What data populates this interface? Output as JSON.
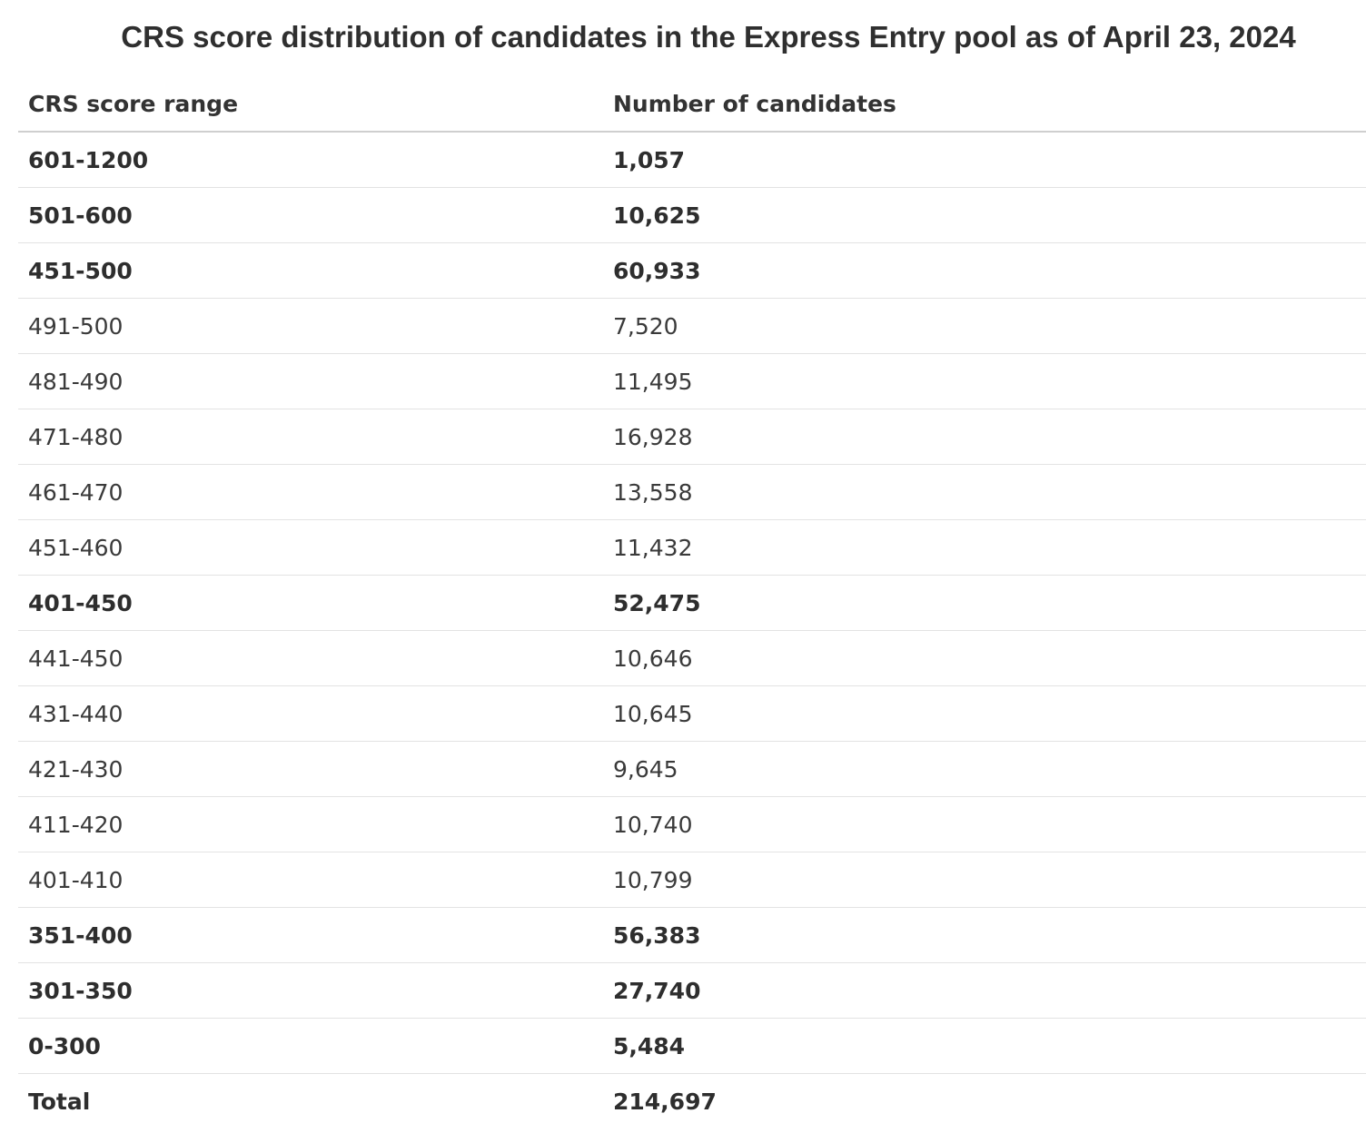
{
  "title": "CRS score distribution of candidates in the Express Entry pool as of April 23, 2024",
  "table": {
    "headers": [
      "CRS score range",
      "Number of candidates"
    ],
    "rows": [
      {
        "range": "601-1200",
        "count": "1,057",
        "bold": true
      },
      {
        "range": "501-600",
        "count": "10,625",
        "bold": true
      },
      {
        "range": "451-500",
        "count": "60,933",
        "bold": true
      },
      {
        "range": "491-500",
        "count": "7,520",
        "bold": false
      },
      {
        "range": "481-490",
        "count": "11,495",
        "bold": false
      },
      {
        "range": "471-480",
        "count": "16,928",
        "bold": false
      },
      {
        "range": "461-470",
        "count": "13,558",
        "bold": false
      },
      {
        "range": "451-460",
        "count": "11,432",
        "bold": false
      },
      {
        "range": "401-450",
        "count": "52,475",
        "bold": true
      },
      {
        "range": "441-450",
        "count": "10,646",
        "bold": false
      },
      {
        "range": "431-440",
        "count": "10,645",
        "bold": false
      },
      {
        "range": "421-430",
        "count": "9,645",
        "bold": false
      },
      {
        "range": "411-420",
        "count": "10,740",
        "bold": false
      },
      {
        "range": "401-410",
        "count": "10,799",
        "bold": false
      },
      {
        "range": "351-400",
        "count": "56,383",
        "bold": true
      },
      {
        "range": "301-350",
        "count": "27,740",
        "bold": true
      },
      {
        "range": "0-300",
        "count": "5,484",
        "bold": true
      },
      {
        "range": "Total",
        "count": "214,697",
        "bold": true,
        "total": true
      }
    ]
  }
}
